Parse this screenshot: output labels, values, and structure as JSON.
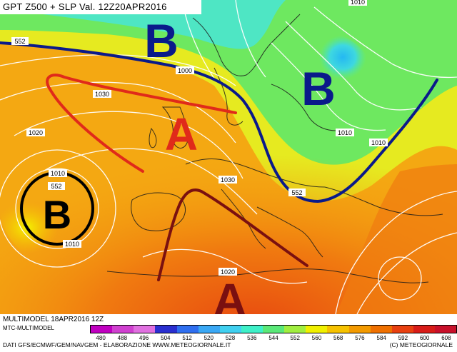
{
  "header": {
    "title": "GPT Z500 + SLP Val. 12Z20APR2016"
  },
  "map": {
    "pressure_labels": [
      "552",
      "1000",
      "1030",
      "1010",
      "1010",
      "1020",
      "1010",
      "552",
      "1010",
      "1030",
      "552",
      "1010",
      "1020"
    ],
    "centers": [
      "B",
      "B",
      "A",
      "B",
      "A"
    ]
  },
  "footer": {
    "model": "MULTIMODEL 18APR2016 12Z",
    "mtc": "MTC-MULTIMODEL",
    "data_line": "DATI GFS/ECMWF/GEM/NAVGEM - ELABORAZIONE WWW.METEOGIORNALE.IT",
    "copyright": "(C) METEOGIORNALE"
  },
  "legend": {
    "values": [
      "480",
      "488",
      "496",
      "504",
      "512",
      "520",
      "528",
      "536",
      "544",
      "552",
      "560",
      "568",
      "576",
      "584",
      "592",
      "600",
      "608"
    ],
    "colors": [
      "#c000c0",
      "#d040d0",
      "#e070e0",
      "#2a2fd0",
      "#2f6ff0",
      "#3aa8f5",
      "#40d0f0",
      "#3ef0c8",
      "#5ae878",
      "#a0ee40",
      "#f0f000",
      "#f6c200",
      "#f39a00",
      "#ef7000",
      "#e84010",
      "#d81c18",
      "#c8102a"
    ]
  },
  "colors": {
    "trough": "#0a1a8a",
    "ridge_red": "#e02a1a",
    "ridge_dark": "#7a1010"
  }
}
